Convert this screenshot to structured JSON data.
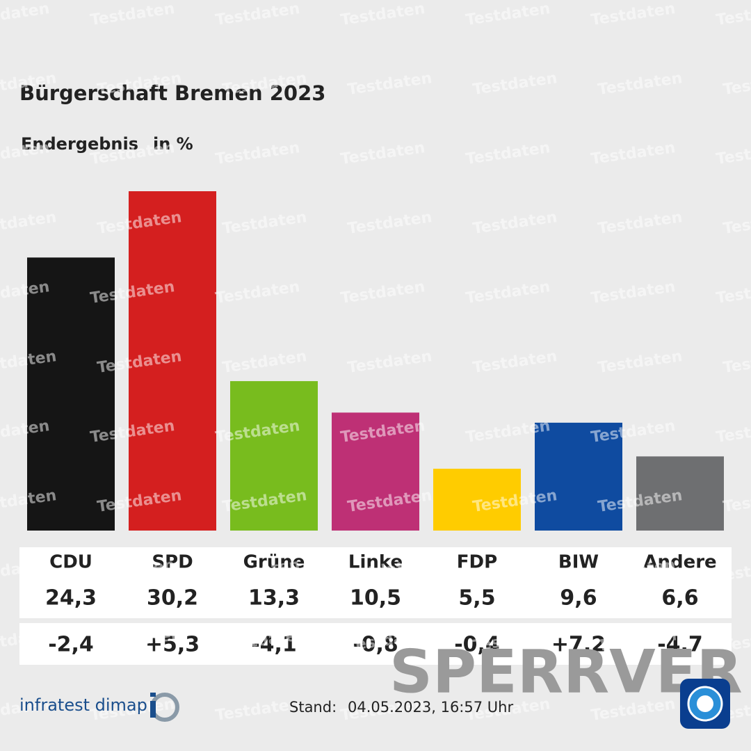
{
  "chart_data": {
    "type": "bar",
    "title": "Bürgerschaft Bremen 2023",
    "subtitle": "Endergebnis",
    "unit": "in %",
    "categories": [
      "CDU",
      "SPD",
      "Grüne",
      "Linke",
      "FDP",
      "BIW",
      "Andere"
    ],
    "values": [
      24.3,
      30.2,
      13.3,
      10.5,
      5.5,
      9.6,
      6.6
    ],
    "value_labels": [
      "24,3",
      "30,2",
      "13,3",
      "10,5",
      "5,5",
      "9,6",
      "6,6"
    ],
    "colors": [
      "#151515",
      "#d41f1f",
      "#78bc1e",
      "#be3075",
      "#ffcc00",
      "#0f4ba0",
      "#6e6f71"
    ],
    "changes": {
      "values": [
        -2.4,
        5.3,
        -4.1,
        -0.8,
        -0.4,
        7.2,
        -4.7
      ],
      "value_labels": [
        "-2,4",
        "+5,3",
        "-4,1",
        "-0,8",
        "-0,4",
        "+7,2",
        "-4,7"
      ]
    }
  },
  "footer": {
    "source": "infratest dimap",
    "stand_label": "Stand:",
    "stand": "04.05.2023, 16:57 Uhr"
  },
  "watermark": "Testdaten",
  "stamp": "SPERRVER"
}
